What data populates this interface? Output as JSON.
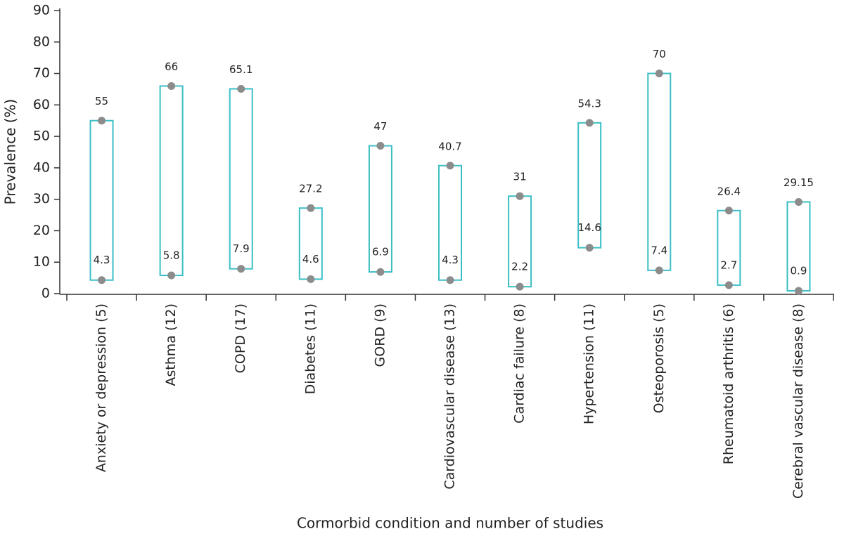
{
  "chart_data": {
    "type": "range",
    "y_label": "Prevalence (%)",
    "x_label": "Cormorbid condition and number of studies",
    "categories": [
      "Anxiety or depression (5)",
      "Asthma (12)",
      "COPD (17)",
      "Diabetes (11)",
      "GORD (9)",
      "Cardiovascular disease (13)",
      "Cardiac failure (8)",
      "Hypertension (11)",
      "Osteoporosis (5)",
      "Rheumatoid arthritis (6)",
      "Cerebral vascular disease (8)"
    ],
    "low": [
      4.3,
      5.8,
      7.9,
      4.6,
      6.9,
      4.3,
      2.2,
      14.6,
      7.4,
      2.7,
      0.9
    ],
    "high": [
      55,
      66,
      65.1,
      27.2,
      47,
      40.7,
      31,
      54.3,
      70,
      26.4,
      29.15
    ],
    "ylim": [
      0,
      90
    ],
    "yticks": [
      0,
      10,
      20,
      30,
      40,
      50,
      60,
      70,
      80,
      90
    ],
    "bar_color": "#3bbfc4",
    "dot_color": "#8c8c8c"
  }
}
